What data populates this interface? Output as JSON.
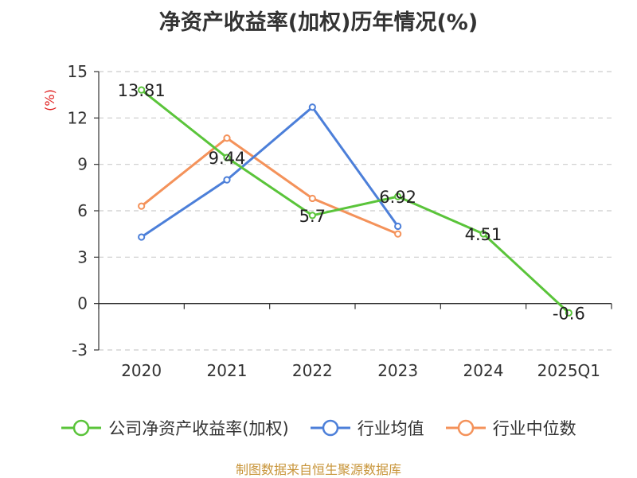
{
  "title": "净资产收益率(加权)历年情况(%)",
  "y_unit": "(%)",
  "source": "制图数据来自恒生聚源数据库",
  "colors": {
    "company": "#5ac43a",
    "industry_avg": "#4c7fd9",
    "industry_median": "#f4925a",
    "axis": "#333333",
    "grid": "#cccccc",
    "unit_label": "#e02020",
    "source_text": "#c8953a"
  },
  "chart_data": {
    "type": "line",
    "categories": [
      "2020",
      "2021",
      "2022",
      "2023",
      "2024",
      "2025Q1"
    ],
    "ylim": [
      -3,
      15
    ],
    "yticks": [
      "15",
      "12",
      "9",
      "6",
      "3",
      "0",
      "-3"
    ],
    "grid": true,
    "legend_position": "bottom",
    "series": [
      {
        "name": "公司净资产收益率(加权)",
        "values": [
          13.81,
          9.44,
          5.7,
          6.92,
          4.51,
          -0.6
        ],
        "labels": [
          "13.81",
          "9.44",
          "5.7",
          "6.92",
          "4.51",
          "-0.6"
        ]
      },
      {
        "name": "行业均值",
        "values": [
          4.3,
          8.0,
          12.7,
          5.0,
          null,
          null
        ]
      },
      {
        "name": "行业中位数",
        "values": [
          6.3,
          10.7,
          6.8,
          4.5,
          null,
          null
        ]
      }
    ]
  }
}
